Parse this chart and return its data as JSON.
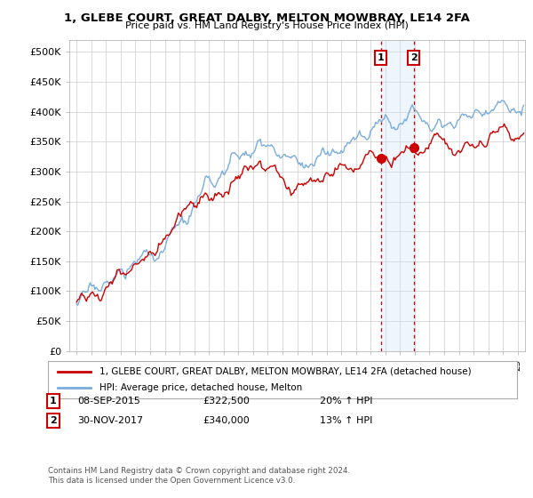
{
  "title": "1, GLEBE COURT, GREAT DALBY, MELTON MOWBRAY, LE14 2FA",
  "subtitle": "Price paid vs. HM Land Registry's House Price Index (HPI)",
  "legend_line1": "1, GLEBE COURT, GREAT DALBY, MELTON MOWBRAY, LE14 2FA (detached house)",
  "legend_line2": "HPI: Average price, detached house, Melton",
  "transaction1_date": "08-SEP-2015",
  "transaction1_price": "£322,500",
  "transaction1_hpi": "20% ↑ HPI",
  "transaction2_date": "30-NOV-2017",
  "transaction2_price": "£340,000",
  "transaction2_hpi": "13% ↑ HPI",
  "hpi_color": "#7aaddb",
  "price_color": "#cc0000",
  "marker_color": "#cc0000",
  "shade_color": "#d0e4f7",
  "transaction1_x": 2015.69,
  "transaction2_x": 2017.92,
  "t1_price": 322500,
  "t2_price": 340000,
  "ylabel_ticks": [
    "£0",
    "£50K",
    "£100K",
    "£150K",
    "£200K",
    "£250K",
    "£300K",
    "£350K",
    "£400K",
    "£450K",
    "£500K"
  ],
  "ytick_vals": [
    0,
    50000,
    100000,
    150000,
    200000,
    250000,
    300000,
    350000,
    400000,
    450000,
    500000
  ],
  "xlim": [
    1994.5,
    2025.5
  ],
  "ylim": [
    0,
    520000
  ],
  "footer": "Contains HM Land Registry data © Crown copyright and database right 2024.\nThis data is licensed under the Open Government Licence v3.0.",
  "background_color": "#ffffff",
  "grid_color": "#cccccc"
}
